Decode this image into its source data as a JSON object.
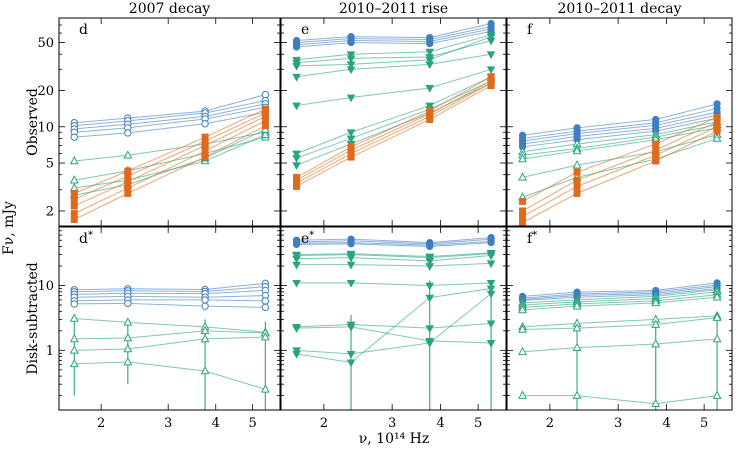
{
  "chart_data": {
    "type": "line",
    "xlabel": "ν, 10¹⁴ Hz",
    "ylabel_common": "Fν, mJy",
    "row_labels": [
      "Observed",
      "Disk-subtracted"
    ],
    "x_scale": "log",
    "y_scale": "log",
    "xlim": [
      1.55,
      5.9
    ],
    "xticks": [
      2,
      3,
      4,
      5
    ],
    "observed_ylim": [
      1.5,
      80
    ],
    "observed_yticks": [
      2,
      5,
      10,
      20,
      50
    ],
    "subtracted_ylim": [
      0.12,
      80
    ],
    "subtracted_yticks": [
      1,
      10
    ],
    "frequencies": [
      1.7,
      2.35,
      3.75,
      5.4
    ],
    "colors": {
      "blue": "#3f7fbf",
      "green": "#2aa380",
      "orange": "#e06a1c"
    },
    "markers": {
      "blue_filled": "filled circle",
      "blue_open": "open circle",
      "green_filled": "filled down-triangle",
      "green_open": "open up-triangle",
      "orange": "filled square"
    },
    "panels": [
      {
        "id": "d",
        "title": "2007 decay",
        "label": "d",
        "row": "Observed",
        "series": [
          {
            "group": "blue",
            "marker": "open circle",
            "values": [
              10.8,
              11.8,
              13.5,
              18.5
            ]
          },
          {
            "group": "blue",
            "marker": "open circle",
            "values": [
              10.2,
              11.2,
              13.0,
              16.5
            ]
          },
          {
            "group": "blue",
            "marker": "open circle",
            "values": [
              9.6,
              10.5,
              12.2,
              15.5
            ]
          },
          {
            "group": "blue",
            "marker": "open circle",
            "values": [
              9.0,
              9.8,
              11.6,
              14.5
            ]
          },
          {
            "group": "blue",
            "marker": "open circle",
            "values": [
              8.2,
              8.9,
              10.6,
              13.2
            ]
          },
          {
            "group": "green",
            "marker": "open up-triangle",
            "values": [
              5.2,
              5.8,
              7.2,
              9.0
            ]
          },
          {
            "group": "green",
            "marker": "open up-triangle",
            "values": [
              3.6,
              4.3,
              6.0,
              8.2
            ]
          },
          {
            "group": "green",
            "marker": "open up-triangle",
            "values": [
              3.1,
              3.6,
              5.2,
              8.6
            ]
          },
          {
            "group": "green",
            "marker": "open up-triangle",
            "values": [
              2.7,
              3.3,
              5.5,
              9.5
            ]
          },
          {
            "group": "orange",
            "marker": "filled square",
            "values": [
              2.8,
              4.3,
              8.2,
              14.0
            ]
          },
          {
            "group": "orange",
            "marker": "filled square",
            "values": [
              2.5,
              3.9,
              7.6,
              13.0
            ]
          },
          {
            "group": "orange",
            "marker": "filled square",
            "values": [
              2.2,
              3.5,
              7.0,
              12.2
            ]
          },
          {
            "group": "orange",
            "marker": "filled square",
            "values": [
              1.9,
              3.1,
              6.3,
              11.2
            ]
          },
          {
            "group": "orange",
            "marker": "filled square",
            "values": [
              1.7,
              2.8,
              5.6,
              10.2
            ]
          }
        ]
      },
      {
        "id": "e",
        "title": "2010–2011 rise",
        "label": "e",
        "row": "Observed",
        "series": [
          {
            "group": "blue",
            "marker": "filled circle",
            "values": [
              52,
              56,
              55,
              72
            ]
          },
          {
            "group": "blue",
            "marker": "filled circle",
            "values": [
              50,
              54,
              53,
              68
            ]
          },
          {
            "group": "blue",
            "marker": "filled circle",
            "values": [
              48,
              52,
              51,
              65
            ]
          },
          {
            "group": "blue",
            "marker": "filled circle",
            "values": [
              46,
              50,
              49,
              62
            ]
          },
          {
            "group": "green",
            "marker": "filled down-triangle",
            "values": [
              36,
              40,
              42,
              58
            ]
          },
          {
            "group": "green",
            "marker": "filled down-triangle",
            "values": [
              34,
              37,
              38,
              52
            ]
          },
          {
            "group": "green",
            "marker": "filled down-triangle",
            "values": [
              32,
              33,
              36,
              56
            ]
          },
          {
            "group": "green",
            "marker": "filled down-triangle",
            "values": [
              26,
              30,
              33,
              40
            ]
          },
          {
            "group": "green",
            "marker": "filled down-triangle",
            "values": [
              15,
              17.5,
              21,
              30
            ]
          },
          {
            "group": "green",
            "marker": "filled down-triangle",
            "values": [
              6.0,
              9.0,
              15.0,
              26
            ]
          },
          {
            "group": "green",
            "marker": "filled down-triangle",
            "values": [
              5.5,
              8.0,
              14.0,
              24
            ]
          },
          {
            "group": "green",
            "marker": "filled down-triangle",
            "values": [
              4.8,
              7.2,
              13.0,
              23
            ]
          },
          {
            "group": "orange",
            "marker": "filled square",
            "values": [
              3.8,
              6.8,
              13.5,
              26
            ]
          },
          {
            "group": "orange",
            "marker": "filled square",
            "values": [
              3.6,
              6.4,
              12.8,
              24
            ]
          },
          {
            "group": "orange",
            "marker": "filled square",
            "values": [
              3.4,
              6.0,
              12.2,
              23
            ]
          },
          {
            "group": "orange",
            "marker": "filled square",
            "values": [
              3.2,
              5.6,
              11.5,
              22
            ]
          }
        ]
      },
      {
        "id": "f",
        "title": "2010–2011 decay",
        "label": "f",
        "row": "Observed",
        "series": [
          {
            "group": "blue",
            "marker": "filled circle",
            "values": [
              8.5,
              9.8,
              11.5,
              15.5
            ]
          },
          {
            "group": "blue",
            "marker": "filled circle",
            "values": [
              8.0,
              9.2,
              10.8,
              14.2
            ]
          },
          {
            "group": "blue",
            "marker": "filled circle",
            "values": [
              7.6,
              8.8,
              10.3,
              13.2
            ]
          },
          {
            "group": "blue",
            "marker": "filled circle",
            "values": [
              7.2,
              8.3,
              9.7,
              12.5
            ]
          },
          {
            "group": "blue",
            "marker": "filled circle",
            "values": [
              6.8,
              7.8,
              9.2,
              11.8
            ]
          },
          {
            "group": "green",
            "marker": "open up-triangle",
            "values": [
              6.2,
              7.2,
              8.6,
              11.0
            ]
          },
          {
            "group": "green",
            "marker": "open up-triangle",
            "values": [
              5.8,
              6.6,
              8.2,
              10.4
            ]
          },
          {
            "group": "green",
            "marker": "open up-triangle",
            "values": [
              5.4,
              6.3,
              7.8,
              9.8
            ]
          },
          {
            "group": "green",
            "marker": "open up-triangle",
            "values": [
              3.8,
              4.8,
              6.2,
              8.6
            ]
          },
          {
            "group": "green",
            "marker": "open up-triangle",
            "values": [
              2.6,
              3.8,
              5.4,
              8.0
            ]
          },
          {
            "group": "orange",
            "marker": "filled square",
            "values": [
              2.4,
              4.2,
              7.2,
              12.0
            ]
          },
          {
            "group": "orange",
            "marker": "filled square",
            "values": [
              2.0,
              3.6,
              6.4,
              11.0
            ]
          },
          {
            "group": "orange",
            "marker": "filled square",
            "values": [
              1.8,
              3.2,
              5.8,
              10.0
            ]
          },
          {
            "group": "orange",
            "marker": "filled square",
            "values": [
              1.6,
              2.8,
              5.2,
              9.2
            ]
          }
        ]
      },
      {
        "id": "d*",
        "title": "",
        "label": "d*",
        "row": "Disk-subtracted",
        "series": [
          {
            "group": "blue",
            "marker": "open circle",
            "values": [
              8.6,
              8.9,
              8.7,
              10.8
            ]
          },
          {
            "group": "blue",
            "marker": "open circle",
            "values": [
              8.0,
              8.3,
              8.1,
              9.6
            ]
          },
          {
            "group": "blue",
            "marker": "open circle",
            "values": [
              7.3,
              7.6,
              7.5,
              8.4
            ]
          },
          {
            "group": "blue",
            "marker": "open circle",
            "values": [
              6.6,
              6.8,
              6.6,
              7.0
            ]
          },
          {
            "group": "blue",
            "marker": "open circle",
            "values": [
              5.8,
              6.0,
              6.0,
              5.8
            ]
          },
          {
            "group": "blue",
            "marker": "open circle",
            "values": [
              5.2,
              5.3,
              4.8,
              4.6
            ]
          },
          {
            "group": "green",
            "marker": "open up-triangle",
            "values": [
              3.1,
              2.7,
              2.3,
              1.9
            ]
          },
          {
            "group": "green",
            "marker": "open up-triangle",
            "values": [
              1.5,
              1.55,
              2.0,
              1.85
            ]
          },
          {
            "group": "green",
            "marker": "open up-triangle",
            "values": [
              1.0,
              1.05,
              1.5,
              1.6
            ]
          },
          {
            "group": "green",
            "marker": "open up-triangle",
            "values": [
              0.62,
              0.66,
              0.48,
              0.25
            ]
          }
        ]
      },
      {
        "id": "e*",
        "title": "",
        "label": "e*",
        "row": "Disk-subtracted",
        "series": [
          {
            "group": "blue",
            "marker": "filled circle",
            "values": [
              50,
              52,
              46,
              55
            ]
          },
          {
            "group": "blue",
            "marker": "filled circle",
            "values": [
              47,
              49,
              44,
              52
            ]
          },
          {
            "group": "blue",
            "marker": "filled circle",
            "values": [
              45,
              46,
              42,
              48
            ]
          },
          {
            "group": "blue",
            "marker": "filled circle",
            "values": [
              43,
              44,
              40,
              46
            ]
          },
          {
            "group": "green",
            "marker": "filled down-triangle",
            "values": [
              30,
              31,
              28,
              32
            ]
          },
          {
            "group": "green",
            "marker": "filled down-triangle",
            "values": [
              29,
              30,
              27,
              31
            ]
          },
          {
            "group": "green",
            "marker": "filled down-triangle",
            "values": [
              26,
              27,
              24,
              29
            ]
          },
          {
            "group": "green",
            "marker": "filled down-triangle",
            "values": [
              21,
              21,
              20,
              22
            ]
          },
          {
            "group": "green",
            "marker": "filled down-triangle",
            "values": [
              11,
              11,
              10,
              11
            ]
          },
          {
            "group": "green",
            "marker": "filled down-triangle",
            "values": [
              2.3,
              2.5,
              2.2,
              2.6
            ]
          },
          {
            "group": "green",
            "marker": "filled down-triangle",
            "values": [
              2.2,
              2.3,
              1.4,
              1.3
            ]
          },
          {
            "group": "green",
            "marker": "filled down-triangle",
            "values": [
              1.0,
              0.88,
              1.3,
              7.5
            ]
          },
          {
            "group": "green",
            "marker": "filled down-triangle",
            "values": [
              0.88,
              0.65,
              6.5,
              9.0
            ]
          }
        ]
      },
      {
        "id": "f*",
        "title": "",
        "label": "f*",
        "row": "Disk-subtracted",
        "series": [
          {
            "group": "blue",
            "marker": "filled circle",
            "values": [
              6.8,
              7.9,
              8.4,
              11.0
            ]
          },
          {
            "group": "blue",
            "marker": "filled circle",
            "values": [
              6.4,
              7.4,
              8.0,
              10.2
            ]
          },
          {
            "group": "blue",
            "marker": "filled circle",
            "values": [
              6.1,
              7.0,
              7.6,
              9.6
            ]
          },
          {
            "group": "blue",
            "marker": "filled circle",
            "values": [
              5.9,
              6.6,
              7.2,
              9.0
            ]
          },
          {
            "group": "green",
            "marker": "open up-triangle",
            "values": [
              5.4,
              6.0,
              6.8,
              8.6
            ]
          },
          {
            "group": "green",
            "marker": "open up-triangle",
            "values": [
              5.0,
              5.6,
              6.3,
              8.0
            ]
          },
          {
            "group": "green",
            "marker": "open up-triangle",
            "values": [
              4.6,
              5.2,
              5.8,
              7.2
            ]
          },
          {
            "group": "green",
            "marker": "open up-triangle",
            "values": [
              4.2,
              4.8,
              5.4,
              6.6
            ]
          },
          {
            "group": "green",
            "marker": "open up-triangle",
            "values": [
              2.3,
              2.6,
              3.0,
              3.4
            ]
          },
          {
            "group": "green",
            "marker": "open up-triangle",
            "values": [
              2.1,
              2.2,
              2.5,
              3.2
            ]
          },
          {
            "group": "green",
            "marker": "open up-triangle",
            "values": [
              0.95,
              1.1,
              1.25,
              1.5
            ]
          },
          {
            "group": "green",
            "marker": "open up-triangle",
            "values": [
              0.2,
              0.2,
              0.15,
              0.2
            ]
          }
        ]
      }
    ],
    "error_bars": [
      {
        "panel": "d*",
        "x": 1.7,
        "low": 0.2,
        "high": 3.3
      },
      {
        "panel": "d*",
        "x": 2.35,
        "low": 0.3,
        "high": 3.1
      },
      {
        "panel": "d*",
        "x": 3.75,
        "low": 0.12,
        "high": 3.0
      },
      {
        "panel": "d*",
        "x": 5.4,
        "low": 0.12,
        "high": 2.8
      },
      {
        "panel": "e*",
        "x": 2.35,
        "low": 0.12,
        "high": 3.5
      },
      {
        "panel": "e*",
        "x": 3.75,
        "low": 0.12,
        "high": 12
      },
      {
        "panel": "e*",
        "x": 5.4,
        "low": 0.12,
        "high": 12
      },
      {
        "panel": "f*",
        "x": 2.35,
        "low": 0.12,
        "high": 3.0
      },
      {
        "panel": "f*",
        "x": 3.75,
        "low": 0.12,
        "high": 3.2
      },
      {
        "panel": "f*",
        "x": 5.4,
        "low": 0.12,
        "high": 3.8
      }
    ]
  }
}
